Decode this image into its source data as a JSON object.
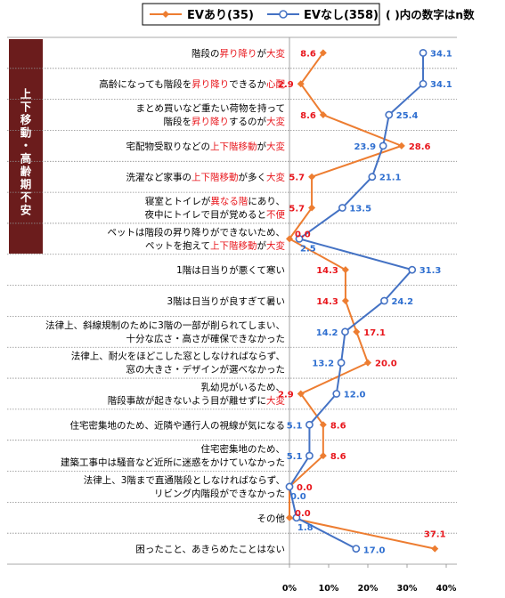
{
  "chart_data": {
    "type": "line",
    "orientation": "horizontal",
    "legend": {
      "note": "( )内の数字はn数"
    },
    "group_label": "上下移動・高齢期不安",
    "categories": [
      {
        "parts": [
          [
            "階段の",
            false
          ],
          [
            "昇り降り",
            true
          ],
          [
            "が",
            false
          ],
          [
            "大変",
            true
          ]
        ]
      },
      {
        "parts": [
          [
            "高齢になっても階段を",
            false
          ],
          [
            "昇り降り",
            true
          ],
          [
            "できるか",
            false
          ],
          [
            "心配",
            true
          ]
        ]
      },
      {
        "parts": [
          [
            "まとめ買いなど重たい荷物を持って",
            false
          ]
        ],
        "parts2": [
          [
            "階段を",
            false
          ],
          [
            "昇り降り",
            true
          ],
          [
            "するのが",
            false
          ],
          [
            "大変",
            true
          ]
        ]
      },
      {
        "parts": [
          [
            "宅配物受取りなどの",
            false
          ],
          [
            "上下階移動",
            true
          ],
          [
            "が",
            false
          ],
          [
            "大変",
            true
          ]
        ]
      },
      {
        "parts": [
          [
            "洗濯など家事の",
            false
          ],
          [
            "上下階移動",
            true
          ],
          [
            "が多く",
            false
          ],
          [
            "大変",
            true
          ]
        ]
      },
      {
        "parts": [
          [
            "寝室とトイレが",
            false
          ],
          [
            "異なる階",
            true
          ],
          [
            "にあり、",
            false
          ]
        ],
        "parts2": [
          [
            "夜中にトイレで目が覚めると",
            false
          ],
          [
            "不便",
            true
          ]
        ]
      },
      {
        "parts": [
          [
            "ペットは階段の昇り降りができないため、",
            false
          ]
        ],
        "parts2": [
          [
            "ペットを抱えて",
            false
          ],
          [
            "上下階移動",
            true
          ],
          [
            "が",
            false
          ],
          [
            "大変",
            true
          ]
        ]
      },
      {
        "parts": [
          [
            "1階は日当りが悪くて寒い",
            false
          ]
        ]
      },
      {
        "parts": [
          [
            "3階は日当りが良すぎて暑い",
            false
          ]
        ]
      },
      {
        "parts": [
          [
            "法律上、斜線規制のために3階の一部が削られてしまい、",
            false
          ]
        ],
        "parts2": [
          [
            "十分な広さ・高さが確保できなかった",
            false
          ]
        ]
      },
      {
        "parts": [
          [
            "法律上、耐火をほどこした窓としなければならず、",
            false
          ]
        ],
        "parts2": [
          [
            "窓の大きさ・デザインが選べなかった",
            false
          ]
        ]
      },
      {
        "parts": [
          [
            "乳幼児がいるため、",
            false
          ]
        ],
        "parts2": [
          [
            "階段事故が起きないよう目が離せずに",
            false
          ],
          [
            "大変",
            true
          ]
        ]
      },
      {
        "parts": [
          [
            "住宅密集地のため、近隣や通行人の視線が気になる",
            false
          ]
        ]
      },
      {
        "parts": [
          [
            "住宅密集地のため、",
            false
          ]
        ],
        "parts2": [
          [
            "建築工事中は騒音など近所に迷惑をかけていなかった",
            false
          ]
        ]
      },
      {
        "parts": [
          [
            "法律上、3階まで直通階段としなければならず、",
            false
          ]
        ],
        "parts2": [
          [
            "リビング内階段ができなかった",
            false
          ]
        ]
      },
      {
        "parts": [
          [
            "その他",
            false
          ]
        ]
      },
      {
        "parts": [
          [
            "困ったこと、あきらめたことはない",
            false
          ]
        ]
      }
    ],
    "series": [
      {
        "name": "EVあり(35)",
        "color": "#ed7d31",
        "marker": "diamond",
        "values": [
          8.6,
          2.9,
          8.6,
          28.6,
          5.7,
          5.7,
          0.0,
          14.3,
          14.3,
          17.1,
          20.0,
          2.9,
          8.6,
          8.6,
          0.0,
          0.0,
          37.1
        ],
        "label_color": "#e8161c"
      },
      {
        "name": "EVなし(358)",
        "color": "#4472c4",
        "marker": "circle",
        "values": [
          34.1,
          34.1,
          25.4,
          23.9,
          21.1,
          13.5,
          2.5,
          31.3,
          24.2,
          14.2,
          13.2,
          12.0,
          5.1,
          5.1,
          0.0,
          1.8,
          17.0
        ],
        "label_color": "#2f6fd0"
      }
    ],
    "value_labels": [
      [
        "8.6",
        "34.1"
      ],
      [
        "2.9",
        "34.1"
      ],
      [
        "8.6",
        "25.4"
      ],
      [
        "28.6",
        "23.9"
      ],
      [
        "5.7",
        "21.1"
      ],
      [
        "5.7",
        "13.5"
      ],
      [
        "0.0",
        "2.5"
      ],
      [
        "14.3",
        "31.3"
      ],
      [
        "14.3",
        "24.2"
      ],
      [
        "17.1",
        "14.2"
      ],
      [
        "20.0",
        "13.2"
      ],
      [
        "2.9",
        "12.0"
      ],
      [
        "8.6",
        "5.1"
      ],
      [
        "8.6",
        "5.1"
      ],
      [
        "0.0",
        "0.0"
      ],
      [
        "0.0",
        "1.8"
      ],
      [
        "37.1",
        "17.0"
      ]
    ],
    "x_ticks": [
      "0%",
      "10%",
      "20%",
      "30%",
      "40%"
    ],
    "xlim": [
      0,
      40
    ],
    "grid": "row separators"
  }
}
